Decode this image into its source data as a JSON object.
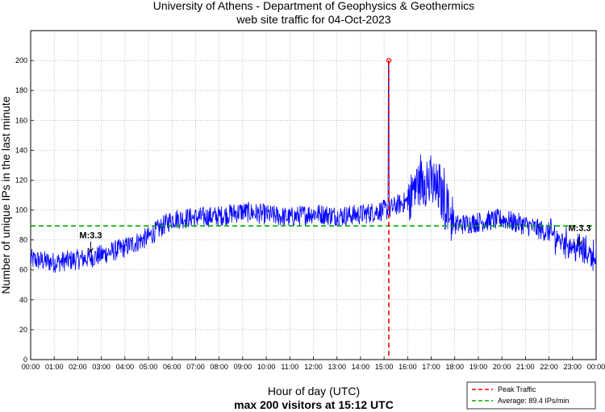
{
  "chart_data": {
    "type": "line",
    "title_line1": "University of Athens - Department of Geophysics & Geothermics",
    "title_line2": "web site traffic for 04-Oct-2023",
    "xlabel": "Hour of day (UTC)",
    "summary": "max 200 visitors at 15:12 UTC",
    "ylabel": "Number of unique IPs in the last minute",
    "ylim": [
      0,
      220
    ],
    "yticks": [
      0,
      20,
      40,
      60,
      80,
      100,
      120,
      140,
      160,
      180,
      200
    ],
    "xlim_hours": [
      0,
      24
    ],
    "xticks": [
      "00:00",
      "01:00",
      "02:00",
      "03:00",
      "04:00",
      "05:00",
      "06:00",
      "07:00",
      "08:00",
      "09:00",
      "10:00",
      "11:00",
      "12:00",
      "13:00",
      "14:00",
      "15:00",
      "16:00",
      "17:00",
      "18:00",
      "19:00",
      "20:00",
      "21:00",
      "22:00",
      "23:00",
      "00:00"
    ],
    "grid": true,
    "series_color": "#0000ff",
    "average": {
      "value": 89.4,
      "color": "#00aa00",
      "legend_label": "Average: 89.4 IPs/min"
    },
    "peak": {
      "value": 200,
      "hour": 15.2,
      "color": "#ff0000",
      "legend_label": "Peak Traffic"
    },
    "legend_position": "bottom-right",
    "traffic_profile": {
      "hours": [
        0,
        1,
        2,
        2.5,
        3,
        4,
        5,
        5.5,
        6,
        7,
        8,
        9,
        10,
        11,
        12,
        13,
        14,
        15,
        15.2,
        15.5,
        16,
        16.5,
        17,
        17.5,
        18,
        19,
        20,
        21,
        22,
        22.5,
        23,
        23.5,
        24
      ],
      "values": [
        67,
        65,
        67,
        68,
        70,
        75,
        82,
        88,
        94,
        95,
        96,
        99,
        97,
        95,
        98,
        96,
        97,
        100,
        100,
        103,
        106,
        120,
        118,
        110,
        90,
        92,
        94,
        90,
        85,
        80,
        76,
        72,
        70
      ],
      "noise_amplitude": 7
    },
    "annotations": [
      {
        "text": "M:3.3",
        "hour": 2.55,
        "value": 80
      },
      {
        "text": "M:3.3",
        "hour": 23.3,
        "value": 85
      }
    ]
  }
}
